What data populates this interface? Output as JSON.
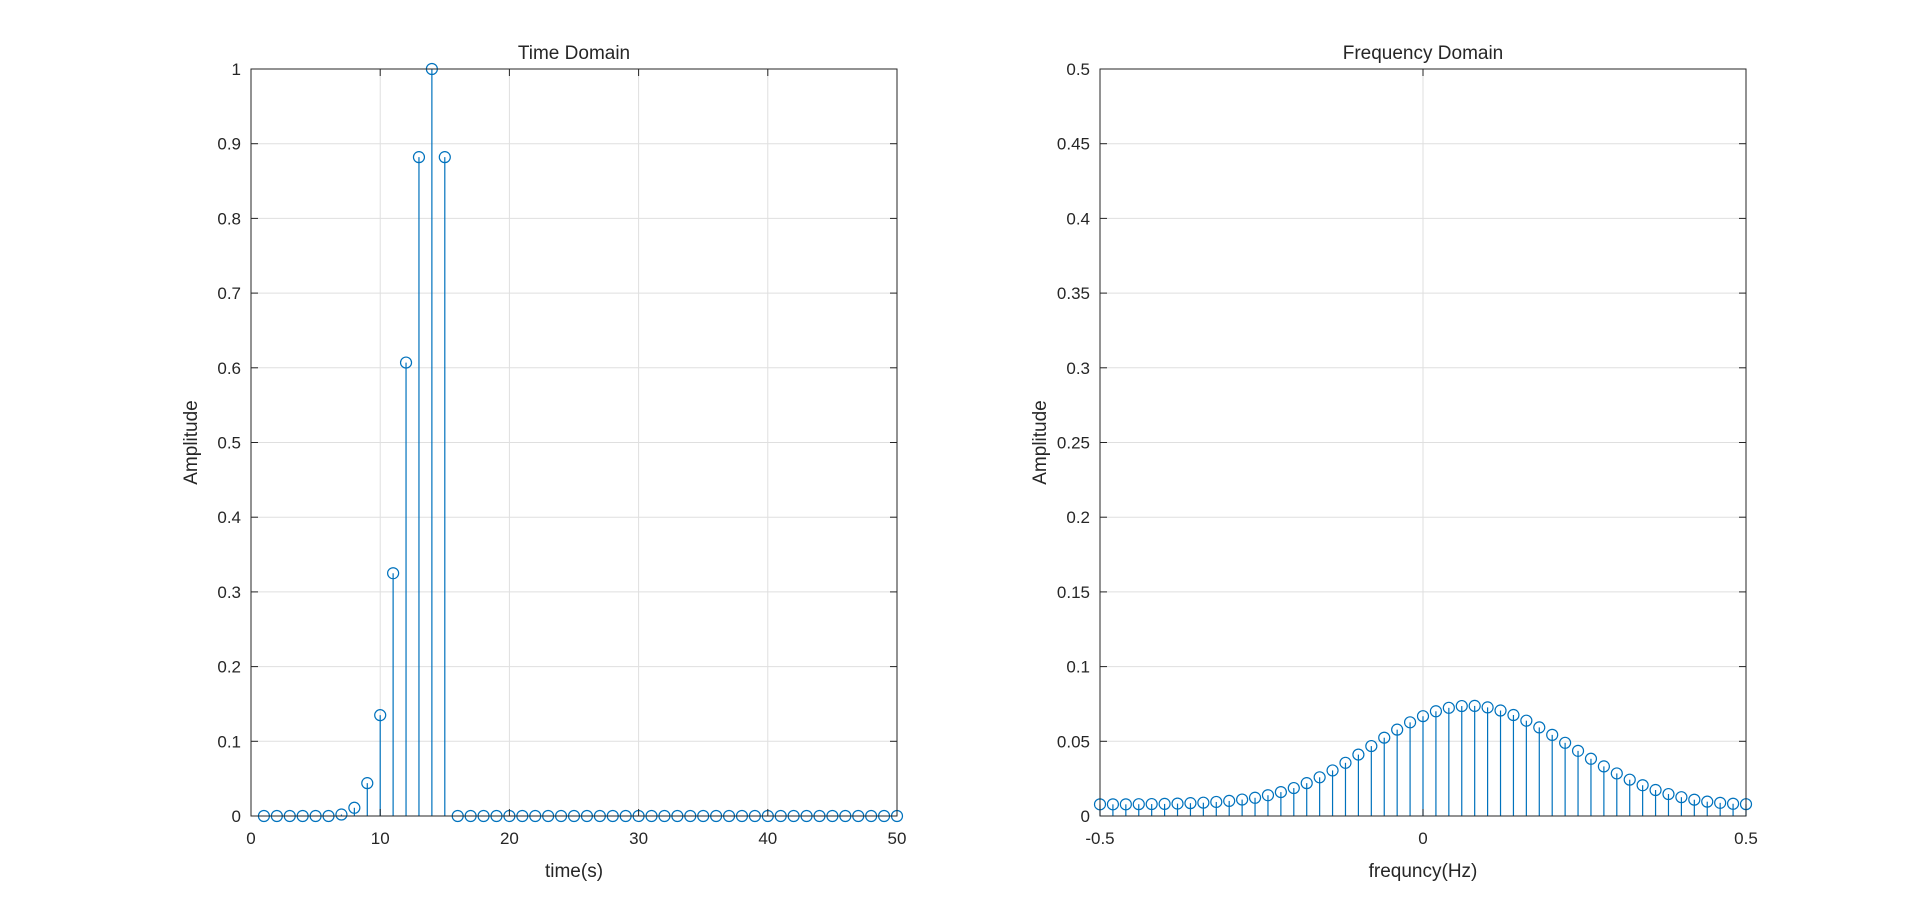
{
  "chart_data": [
    {
      "type": "stem",
      "title": "Time Domain",
      "xlabel": "time(s)",
      "ylabel": "Amplitude",
      "xlim": [
        0,
        50
      ],
      "ylim": [
        0,
        1
      ],
      "xticks": [
        0,
        10,
        20,
        30,
        40,
        50
      ],
      "yticks": [
        0,
        0.1,
        0.2,
        0.3,
        0.4,
        0.5,
        0.6,
        0.7,
        0.8,
        0.9,
        1
      ],
      "ytick_labels": [
        "0",
        "0.1",
        "0.2",
        "0.3",
        "0.4",
        "0.5",
        "0.6",
        "0.7",
        "0.8",
        "0.9",
        "1"
      ],
      "grid": true,
      "color": "#0072BD",
      "series": [
        {
          "x": [
            1,
            2,
            3,
            4,
            5,
            6,
            7,
            8,
            9,
            10,
            11,
            12,
            13,
            14,
            15,
            16,
            17,
            18,
            19,
            20,
            21,
            22,
            23,
            24,
            25,
            26,
            27,
            28,
            29,
            30,
            31,
            32,
            33,
            34,
            35,
            36,
            37,
            38,
            39,
            40,
            41,
            42,
            43,
            44,
            45,
            46,
            47,
            48,
            49,
            50
          ],
          "y": [
            0,
            0,
            0,
            0,
            0,
            0,
            0.002,
            0.011,
            0.044,
            0.135,
            0.325,
            0.607,
            0.882,
            1,
            0.882,
            0,
            0,
            0,
            0,
            0,
            0,
            0,
            0,
            0,
            0,
            0,
            0,
            0,
            0,
            0,
            0,
            0,
            0,
            0,
            0,
            0,
            0,
            0,
            0,
            0,
            0,
            0,
            0,
            0,
            0,
            0,
            0,
            0,
            0,
            0
          ]
        }
      ]
    },
    {
      "type": "stem",
      "title": "Frequency Domain",
      "xlabel": "frequncy(Hz)",
      "ylabel": "Amplitude",
      "xlim": [
        -0.5,
        0.5
      ],
      "ylim": [
        0,
        0.5
      ],
      "xticks": [
        -0.5,
        0,
        0.5
      ],
      "xtick_labels": [
        "-0.5",
        "0",
        "0.5"
      ],
      "yticks": [
        0,
        0.05,
        0.1,
        0.15,
        0.2,
        0.25,
        0.3,
        0.35,
        0.4,
        0.45,
        0.5
      ],
      "ytick_labels": [
        "0",
        "0.05",
        "0.1",
        "0.15",
        "0.2",
        "0.25",
        "0.3",
        "0.35",
        "0.4",
        "0.45",
        "0.5"
      ],
      "grid": true,
      "color": "#0072BD",
      "series": [
        {
          "x": [
            -0.5,
            -0.48,
            -0.46,
            -0.44,
            -0.42,
            -0.4,
            -0.38,
            -0.36,
            -0.34,
            -0.32,
            -0.3,
            -0.28,
            -0.26,
            -0.24,
            -0.22,
            -0.2,
            -0.18,
            -0.16,
            -0.14,
            -0.12,
            -0.1,
            -0.08,
            -0.06,
            -0.04,
            -0.02,
            0,
            0.02,
            0.04,
            0.06,
            0.08,
            0.1,
            0.12,
            0.14,
            0.16,
            0.18,
            0.2,
            0.22,
            0.24,
            0.26,
            0.28,
            0.3,
            0.32,
            0.34,
            0.36,
            0.38,
            0.4,
            0.42,
            0.44,
            0.46,
            0.48,
            0.5
          ],
          "y": [
            0.0078,
            0.0078,
            0.0078,
            0.0079,
            0.008,
            0.0081,
            0.0083,
            0.0086,
            0.0089,
            0.0094,
            0.0101,
            0.011,
            0.0122,
            0.0139,
            0.016,
            0.0187,
            0.022,
            0.0259,
            0.0305,
            0.0356,
            0.0411,
            0.0468,
            0.0524,
            0.0578,
            0.0627,
            0.0668,
            0.0701,
            0.0724,
            0.0736,
            0.0737,
            0.0727,
            0.0706,
            0.0676,
            0.0638,
            0.0593,
            0.0543,
            0.049,
            0.0436,
            0.0383,
            0.0332,
            0.0285,
            0.0243,
            0.0206,
            0.0174,
            0.0147,
            0.0126,
            0.0109,
            0.0096,
            0.0088,
            0.0082,
            0.0079
          ]
        }
      ]
    }
  ]
}
